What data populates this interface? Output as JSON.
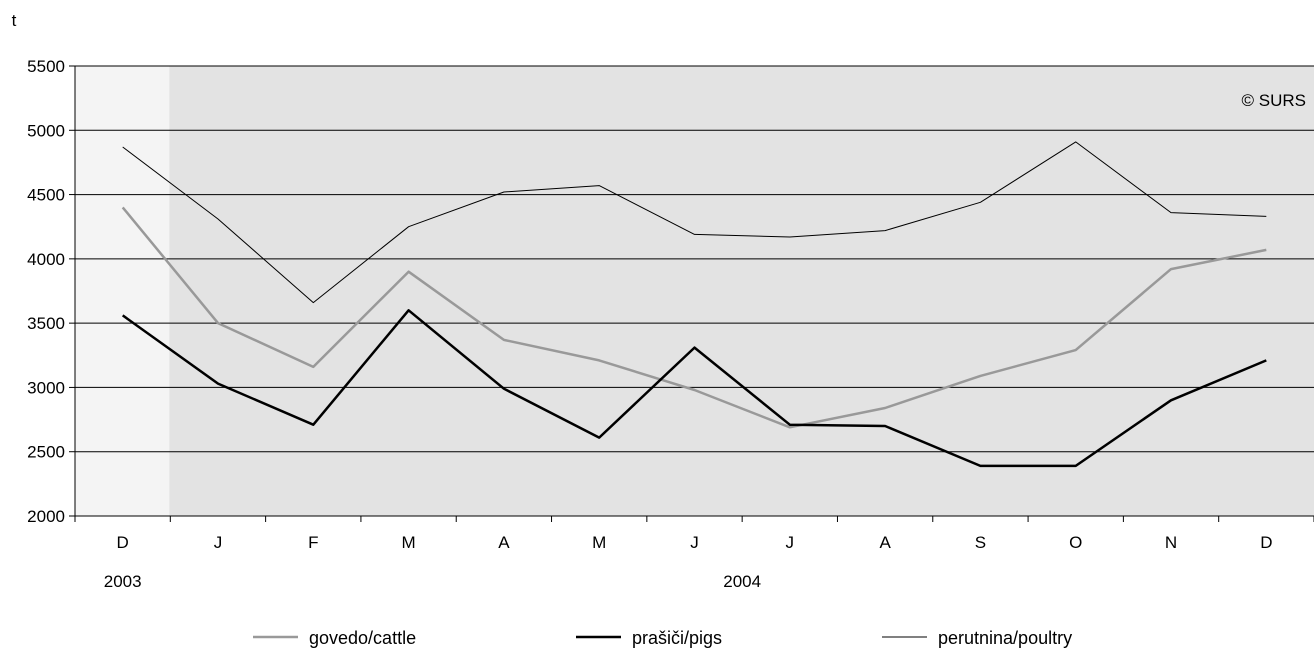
{
  "chart_data": {
    "type": "line",
    "ylabel": "t",
    "ylim": [
      2000,
      5500
    ],
    "yticks": [
      2000,
      2500,
      3000,
      3500,
      4000,
      4500,
      5000,
      5500
    ],
    "categories": [
      "D",
      "J",
      "F",
      "M",
      "A",
      "M",
      "J",
      "J",
      "A",
      "S",
      "O",
      "N",
      "D"
    ],
    "year_groups": [
      {
        "label": "2003",
        "from": 0,
        "to": 0
      },
      {
        "label": "2004",
        "from": 1,
        "to": 12
      }
    ],
    "copyright": "© SURS",
    "grid": true,
    "legend_position": "bottom",
    "colors": {
      "plot_background": "#e3e3e3",
      "first_period_background": "#f4f4f4",
      "gridline": "#000000"
    },
    "series": [
      {
        "name": "govedo/cattle",
        "color": "#999999",
        "values": [
          4400,
          3500,
          3160,
          3900,
          3370,
          3210,
          2980,
          2690,
          2840,
          3090,
          3290,
          3920,
          4070
        ]
      },
      {
        "name": "prašiči/pigs",
        "color": "#000000",
        "values": [
          3560,
          3030,
          2710,
          3600,
          2990,
          2610,
          3310,
          2710,
          2700,
          2390,
          2390,
          2900,
          3210
        ]
      },
      {
        "name": "perutnina/poultry",
        "color": "#000000",
        "values": [
          4870,
          4310,
          3660,
          4250,
          4520,
          4570,
          4190,
          4170,
          4220,
          4440,
          4910,
          4360,
          4330
        ]
      }
    ]
  }
}
